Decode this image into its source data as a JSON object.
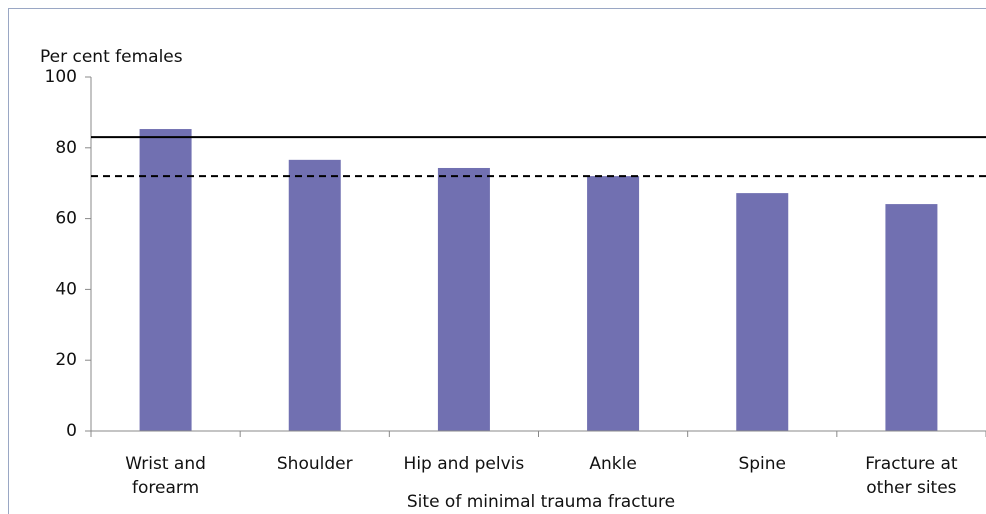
{
  "chart_data": {
    "type": "bar",
    "y_axis_label": "Per cent females",
    "x_axis_label": "Site of minimal trauma fracture",
    "categories": [
      "Wrist and forearm",
      "Shoulder",
      "Hip and pelvis",
      "Ankle",
      "Spine",
      "Fracture at other sites"
    ],
    "values": [
      85.3,
      76.6,
      74.3,
      72,
      67.2,
      64.1
    ],
    "color": "#7170b1",
    "reference_lines": [
      {
        "value": 83,
        "style": "solid"
      },
      {
        "value": 72,
        "style": "dashed"
      }
    ],
    "ylim": [
      0,
      100
    ],
    "yticks": [
      0,
      20,
      40,
      60,
      80,
      100
    ],
    "grid": false
  }
}
